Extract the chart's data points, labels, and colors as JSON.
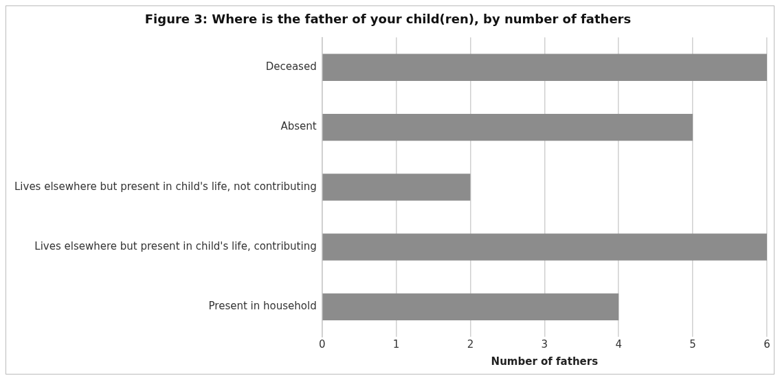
{
  "chart_data": {
    "type": "bar",
    "orientation": "horizontal",
    "title": "Figure 3: Where is the father of your child(ren), by number of fathers",
    "xlabel": "Number of fathers",
    "categories": [
      "Deceased",
      "Absent",
      "Lives elsewhere but present in child's life, not contributing",
      "Lives elsewhere but present in child's life, contributing",
      "Present in household"
    ],
    "values": [
      6,
      5,
      2,
      6,
      4
    ],
    "color": "#8c8c8c",
    "xlim": [
      0,
      6
    ],
    "xticks": [
      0,
      1,
      2,
      3,
      4,
      5,
      6
    ],
    "grid": "x",
    "legend": false
  }
}
